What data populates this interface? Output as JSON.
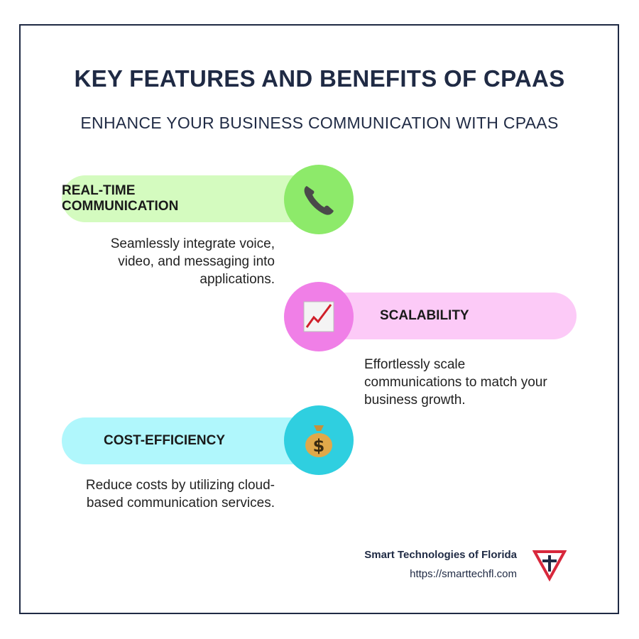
{
  "title": "KEY FEATURES AND BENEFITS OF CPAAS",
  "subtitle": "ENHANCE YOUR BUSINESS COMMUNICATION WITH CPAAS",
  "features": [
    {
      "label": "REAL-TIME COMMUNICATION",
      "description": "Seamlessly integrate voice, video, and messaging into applications.",
      "icon": "telephone-icon",
      "pill_color": "#d4fbbf",
      "circle_color": "#8dea6a"
    },
    {
      "label": "SCALABILITY",
      "description": "Effortlessly scale communications to match your business growth.",
      "icon": "chart-increasing-icon",
      "pill_color": "#fccaf7",
      "circle_color": "#f07fe7"
    },
    {
      "label": "COST-EFFICIENCY",
      "description": "Reduce costs by utilizing cloud-based communication services.",
      "icon": "money-bag-icon",
      "pill_color": "#b0f7fc",
      "circle_color": "#2fcfe0"
    }
  ],
  "footer": {
    "company": "Smart Technologies of Florida",
    "url": "https://smarttechfl.com",
    "logo": "smart-technologies-logo"
  }
}
